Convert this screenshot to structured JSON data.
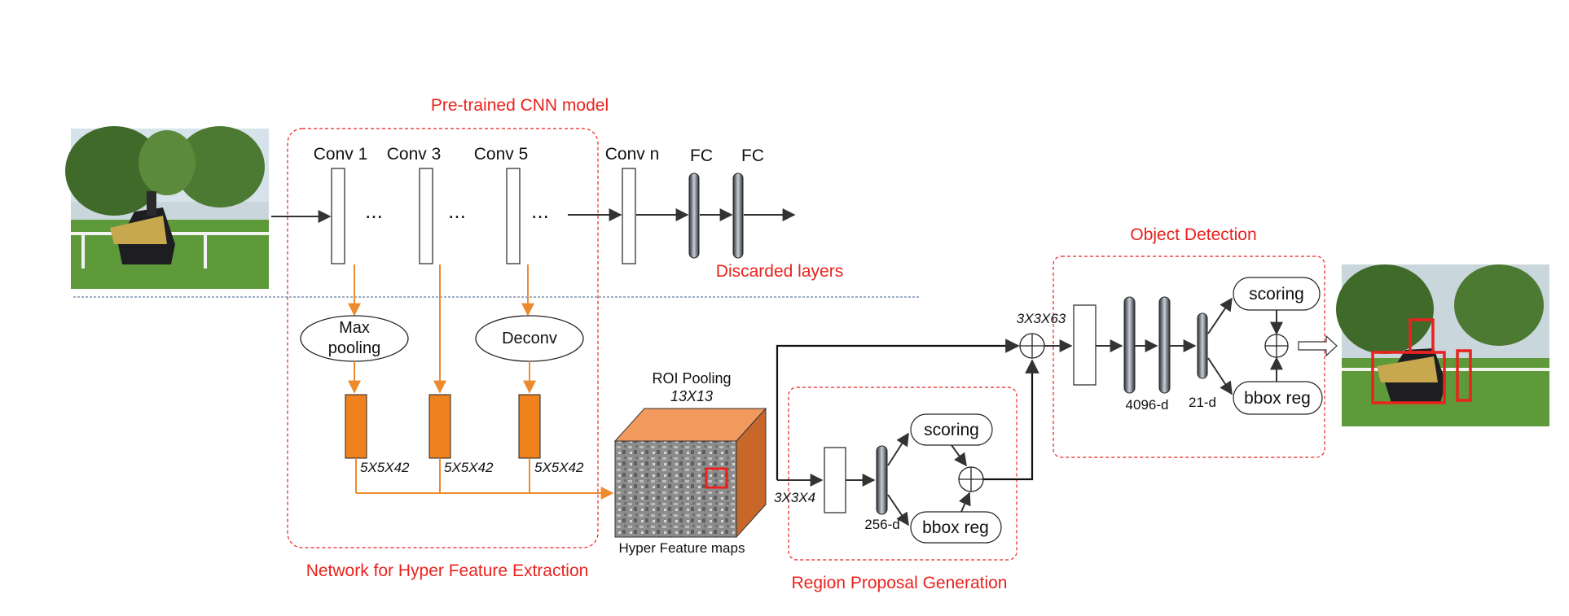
{
  "sections": {
    "cnn_title": "Pre-trained CNN model",
    "hyper_title": "Network for Hyper Feature Extraction",
    "rpn_title": "Region Proposal Generation",
    "det_title": "Object Detection",
    "discarded": "Discarded layers"
  },
  "layers": {
    "conv1": "Conv 1",
    "conv3": "Conv 3",
    "conv5": "Conv 5",
    "convn": "Conv n",
    "fc1": "FC",
    "fc2": "FC",
    "ellipsis": "..."
  },
  "hyper": {
    "maxpool_line1": "Max",
    "maxpool_line2": "pooling",
    "deconv": "Deconv",
    "dim": "5X5X42"
  },
  "roi": {
    "title": "ROI Pooling",
    "size": "13X13",
    "caption": "Hyper Feature maps"
  },
  "rpn": {
    "input_dim": "3X3X4",
    "feat_dim": "256-d",
    "scoring": "scoring",
    "bbox": "bbox reg"
  },
  "det": {
    "input_dim": "3X3X63",
    "fc_dim": "4096-d",
    "cls_dim": "21-d",
    "scoring": "scoring",
    "bbox": "bbox reg"
  },
  "colors": {
    "red": "#e8231e",
    "orange": "#ee8a2e",
    "orange_fill": "#f0821e"
  }
}
